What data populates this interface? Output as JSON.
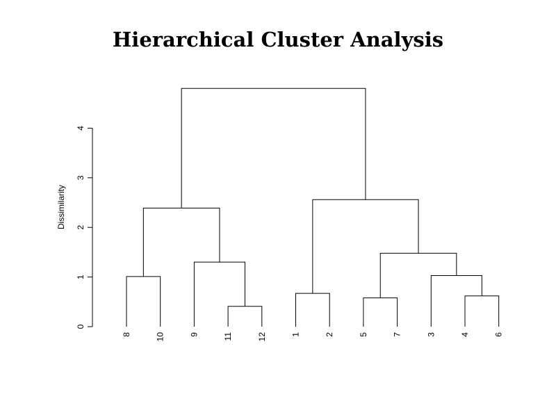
{
  "chart_data": {
    "type": "dendrogram",
    "title": "Hierarchical Cluster Analysis",
    "ylabel": "Dissimilarity",
    "xlabel": "",
    "ylim": [
      0,
      4
    ],
    "yticks": [
      0,
      1,
      2,
      3,
      4
    ],
    "leaf_order": [
      "8",
      "10",
      "9",
      "11",
      "12",
      "1",
      "2",
      "5",
      "7",
      "3",
      "4",
      "6"
    ],
    "merges": [
      {
        "left": "11",
        "right": "12",
        "height": 0.41
      },
      {
        "left": "4",
        "right": "6",
        "height": 0.62
      },
      {
        "left": "5",
        "right": "7",
        "height": 0.58
      },
      {
        "left": "1",
        "right": "2",
        "height": 0.67
      },
      {
        "left": "8",
        "right": "10",
        "height": 1.01
      },
      {
        "left": "3",
        "right": "4+6",
        "height": 1.03
      },
      {
        "left": "9",
        "right": "11+12",
        "height": 1.3
      },
      {
        "left": "5+7",
        "right": "3+4+6",
        "height": 1.48
      },
      {
        "left": "8+10",
        "right": "9+11+12",
        "height": 2.39
      },
      {
        "left": "1+2",
        "right": "5+7+3+4+6",
        "height": 2.56
      },
      {
        "left": "8+10+9+11+12",
        "right": "1+2+5+7+3+4+6",
        "height": 4.8
      }
    ]
  }
}
